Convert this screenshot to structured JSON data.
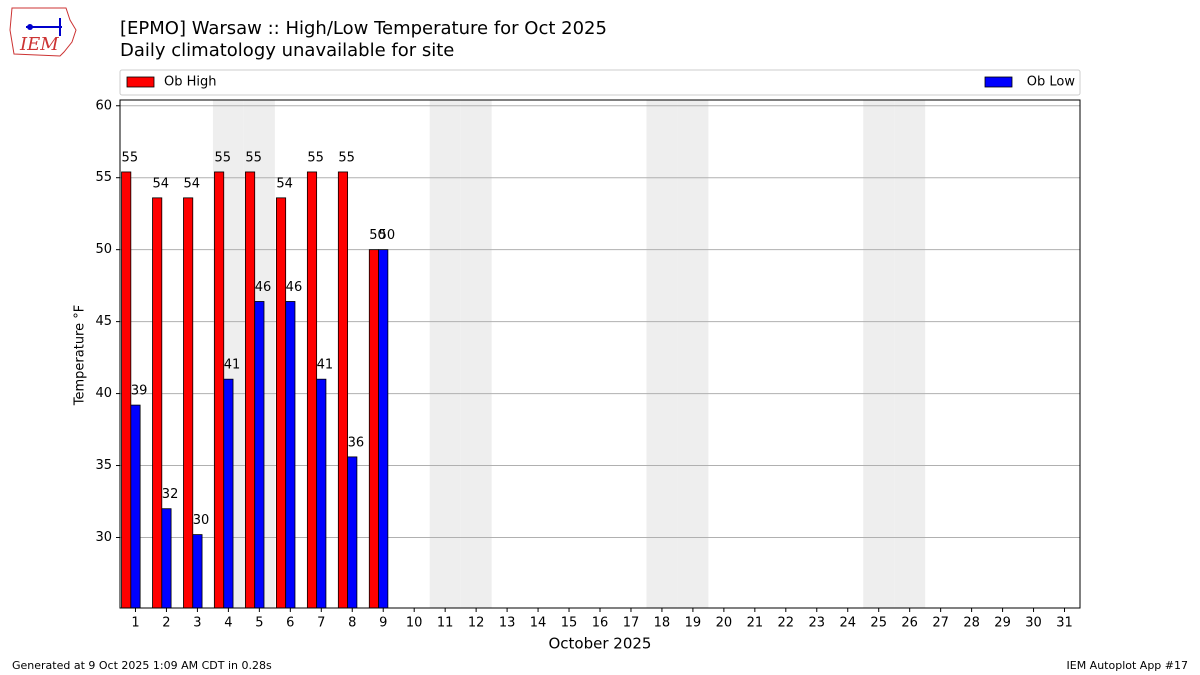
{
  "logo_text": "IEM",
  "chart_data": {
    "type": "bar",
    "title": "[EPMO] Warsaw :: High/Low Temperature for Oct 2025",
    "subtitle": "Daily climatology unavailable for site",
    "x_label": "October 2025",
    "y_label": "Temperature °F",
    "categories": [
      "1",
      "2",
      "3",
      "4",
      "5",
      "6",
      "7",
      "8",
      "9",
      "10",
      "11",
      "12",
      "13",
      "14",
      "15",
      "16",
      "17",
      "18",
      "19",
      "20",
      "21",
      "22",
      "23",
      "24",
      "25",
      "26",
      "27",
      "28",
      "29",
      "30",
      "31"
    ],
    "series": [
      {
        "name": "Ob High",
        "color": "#ff0000",
        "values": [
          55.4,
          53.6,
          53.6,
          55.4,
          55.4,
          53.6,
          55.4,
          55.4,
          50,
          null,
          null,
          null,
          null,
          null,
          null,
          null,
          null,
          null,
          null,
          null,
          null,
          null,
          null,
          null,
          null,
          null,
          null,
          null,
          null,
          null,
          null
        ],
        "value_labels": [
          "55",
          "54",
          "54",
          "55",
          "55",
          "54",
          "55",
          "55",
          "50",
          null,
          null,
          null,
          null,
          null,
          null,
          null,
          null,
          null,
          null,
          null,
          null,
          null,
          null,
          null,
          null,
          null,
          null,
          null,
          null,
          null,
          null
        ]
      },
      {
        "name": "Ob Low",
        "color": "#0000ff",
        "values": [
          39.2,
          32,
          30.2,
          41,
          46.4,
          46.4,
          41,
          35.6,
          50,
          null,
          null,
          null,
          null,
          null,
          null,
          null,
          null,
          null,
          null,
          null,
          null,
          null,
          null,
          null,
          null,
          null,
          null,
          null,
          null,
          null,
          null
        ],
        "value_labels": [
          "39",
          "32",
          "30",
          "41",
          "46",
          "46",
          "41",
          "36",
          "50",
          null,
          null,
          null,
          null,
          null,
          null,
          null,
          null,
          null,
          null,
          null,
          null,
          null,
          null,
          null,
          null,
          null,
          null,
          null,
          null,
          null,
          null
        ]
      }
    ],
    "shaded_categories": [
      3,
      4,
      10,
      11,
      17,
      18,
      24,
      25
    ],
    "ylim": [
      25.1,
      60.4
    ],
    "yticks": [
      30,
      35,
      40,
      45,
      50,
      55,
      60
    ],
    "grid": true,
    "footer_left": "Generated at 9 Oct 2025 1:09 AM CDT in 0.28s",
    "footer_right": "IEM Autoplot App #17"
  }
}
